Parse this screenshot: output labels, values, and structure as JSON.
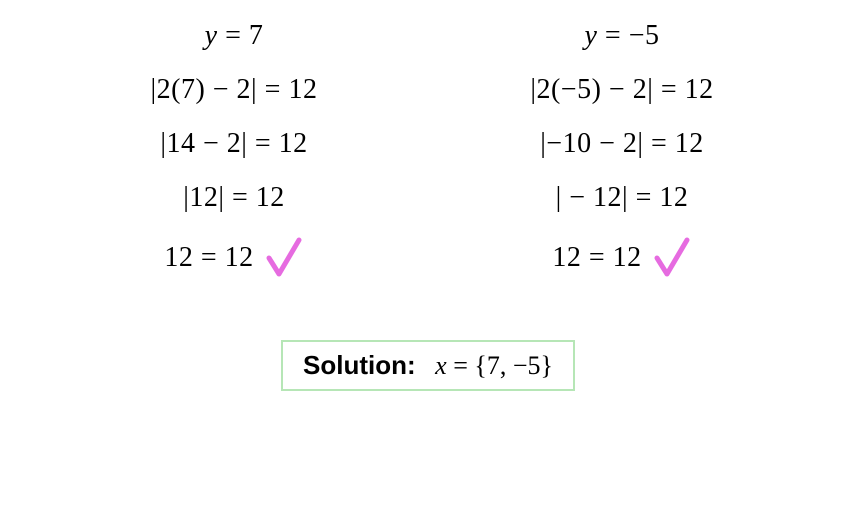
{
  "left": {
    "line1": "y = 7",
    "line2": "|2(7) − 2| = 12",
    "line3": "|14 − 2| = 12",
    "line4": "|12| = 12",
    "line5": "12 = 12"
  },
  "right": {
    "line1": "y = −5",
    "line2": "|2(−5) − 2| = 12",
    "line3": "|−10 − 2| = 12",
    "line4": "| − 12| = 12",
    "line5": "12 = 12"
  },
  "solution": {
    "label": "Solution:",
    "expr_var": "x",
    "expr_rest": " = {7, −5}"
  },
  "style": {
    "text_color": "#000000",
    "background_color": "#ffffff",
    "check_color": "#e66be0",
    "check_stroke_width": 5,
    "box_border_color": "#b6e6b6",
    "math_fontsize": 28,
    "solution_fontsize": 26
  }
}
